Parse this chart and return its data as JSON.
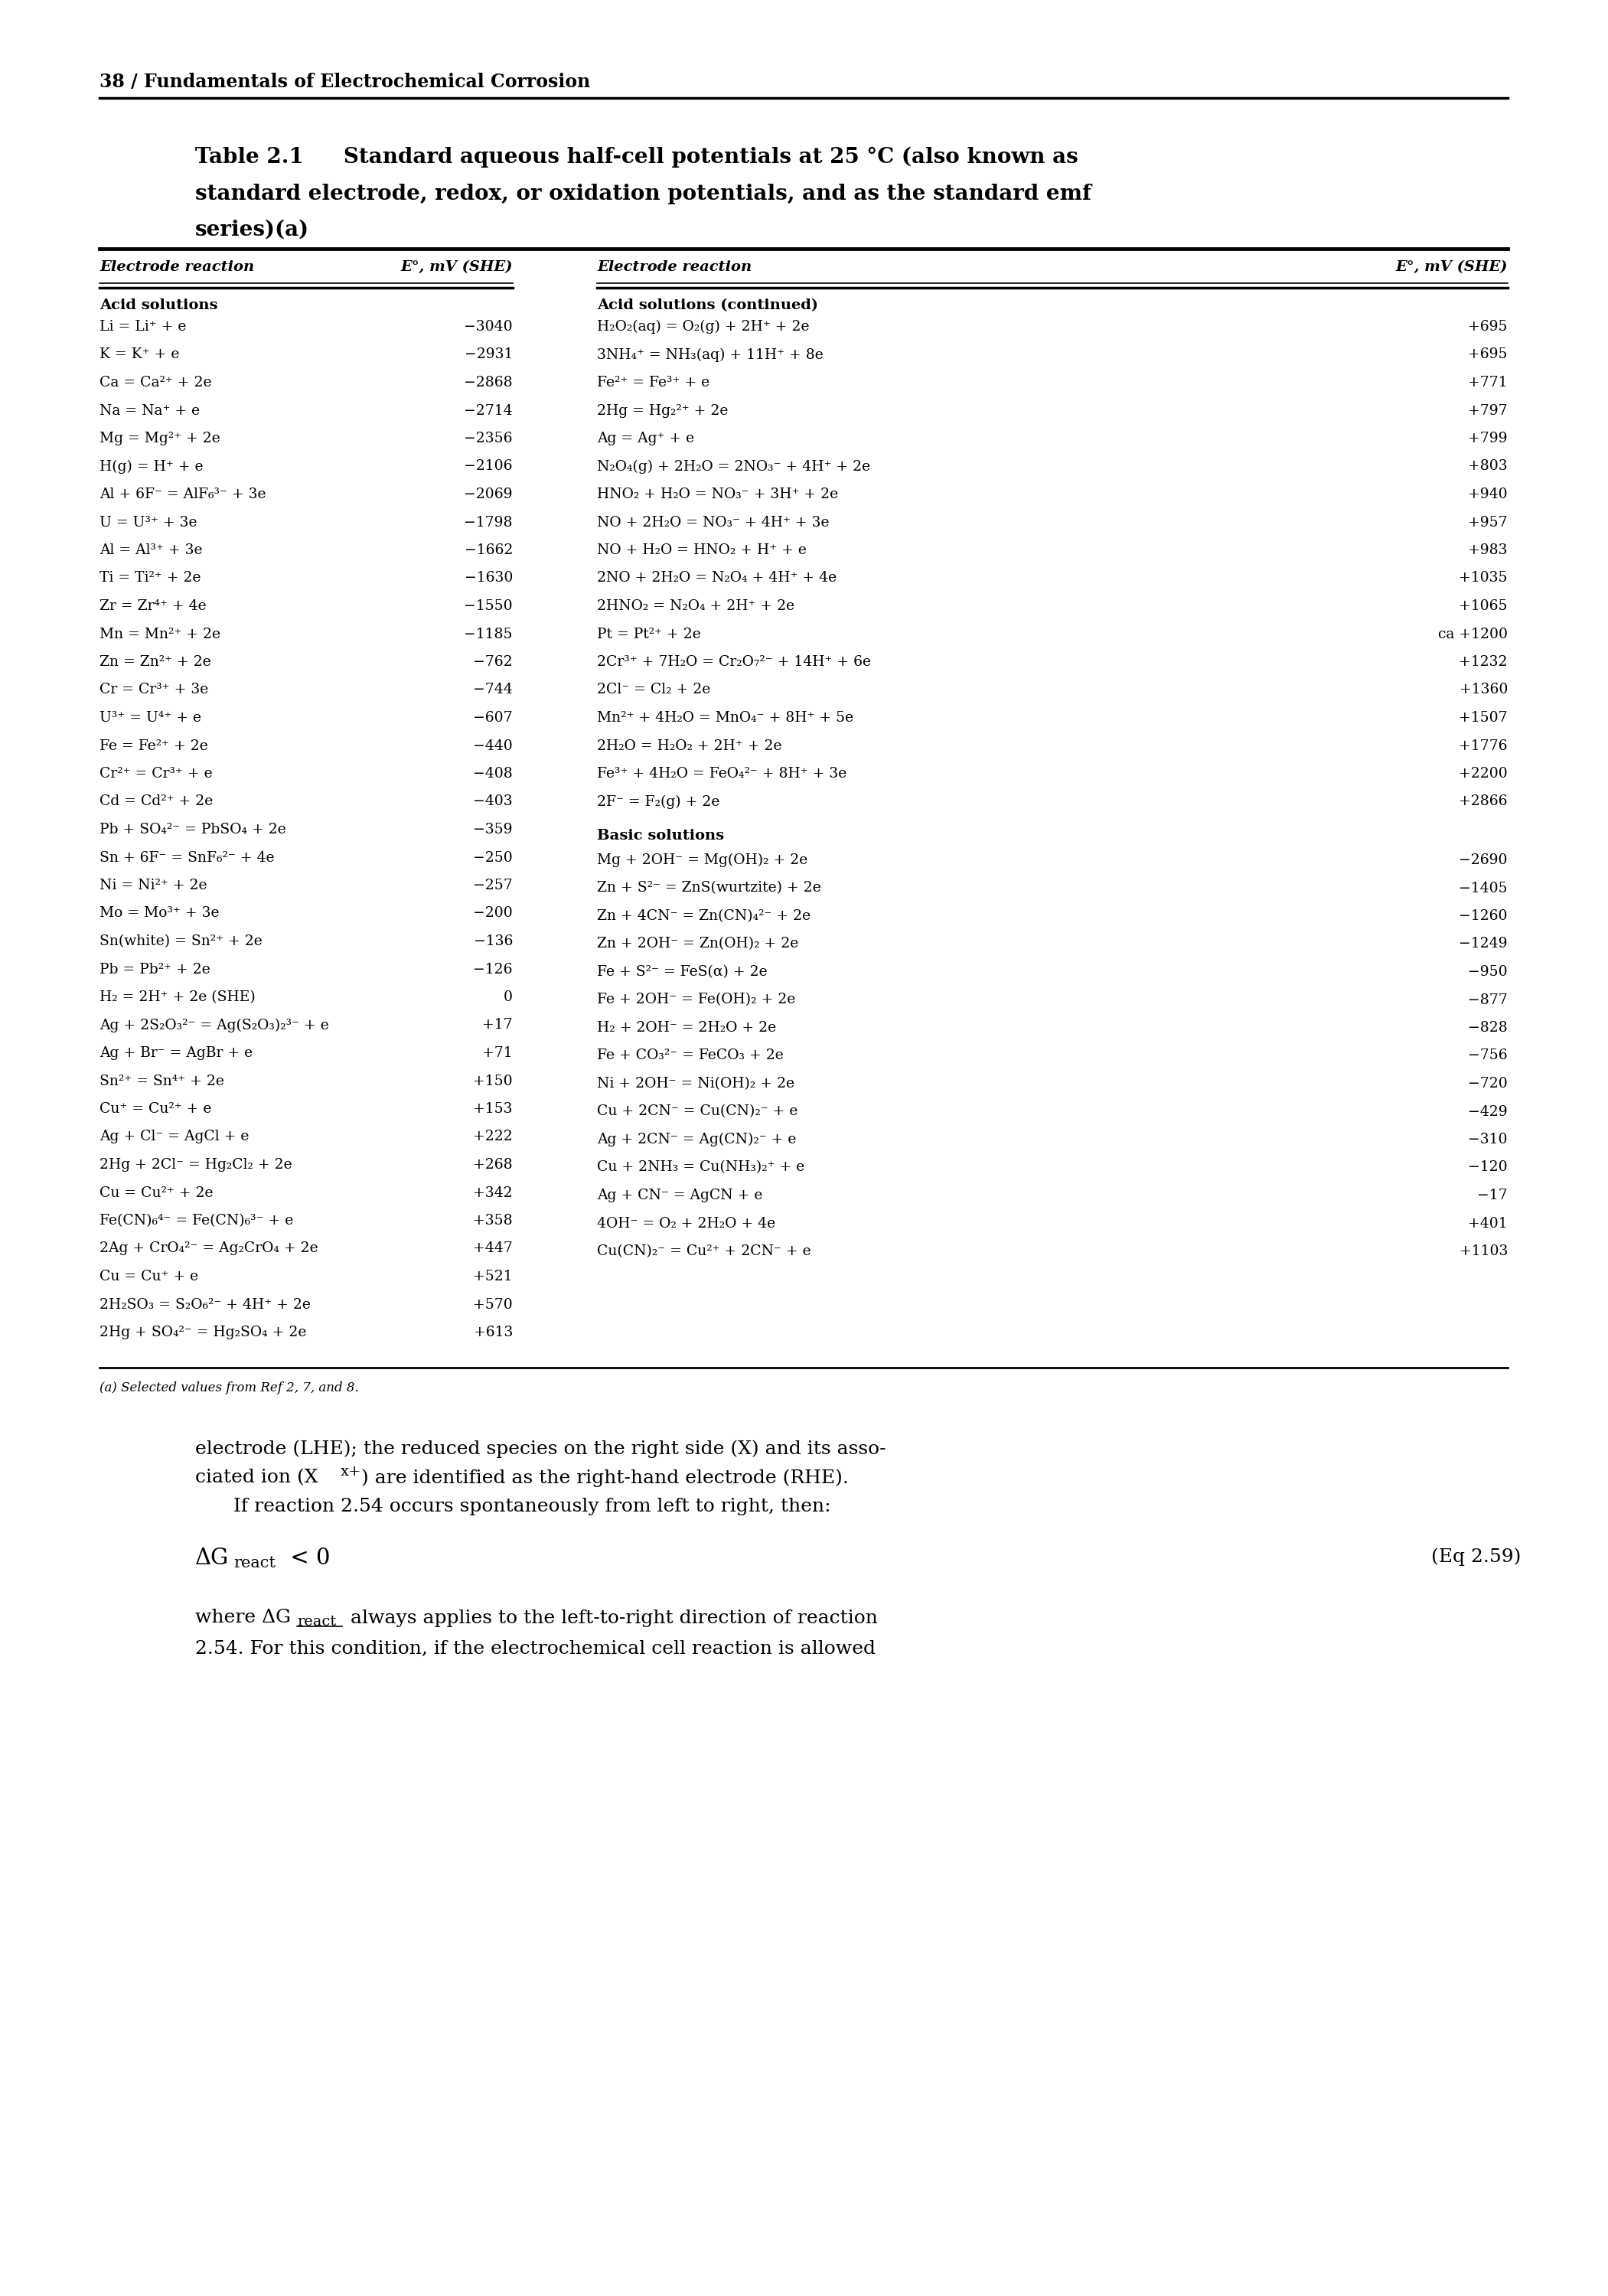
{
  "page_header": "38 / Fundamentals of Electrochemical Corrosion",
  "table_title_line1_bold": "Table 2.1",
  "table_title_line1_rest": "   Standard aqueous half-cell potentials at 25 °C (also known as",
  "table_title_line2": "standard electrode, redox, or oxidation potentials, and as the standard emf",
  "table_title_line3": "series)(a)",
  "col_header_rxn": "Electrode reaction",
  "col_header_e": "E°, mV (SHE)",
  "section_acid": "Acid solutions",
  "section_acid_cont": "Acid solutions (continued)",
  "section_basic": "Basic solutions",
  "left_rows": [
    [
      "Li = Li⁺ + e",
      "−3040"
    ],
    [
      "K = K⁺ + e",
      "−2931"
    ],
    [
      "Ca = Ca²⁺ + 2e",
      "−2868"
    ],
    [
      "Na = Na⁺ + e",
      "−2714"
    ],
    [
      "Mg = Mg²⁺ + 2e",
      "−2356"
    ],
    [
      "H(g) = H⁺ + e",
      "−2106"
    ],
    [
      "Al + 6F⁻ = AlF₆³⁻ + 3e",
      "−2069"
    ],
    [
      "U = U³⁺ + 3e",
      "−1798"
    ],
    [
      "Al = Al³⁺ + 3e",
      "−1662"
    ],
    [
      "Ti = Ti²⁺ + 2e",
      "−1630"
    ],
    [
      "Zr = Zr⁴⁺ + 4e",
      "−1550"
    ],
    [
      "Mn = Mn²⁺ + 2e",
      "−1185"
    ],
    [
      "Zn = Zn²⁺ + 2e",
      "−762"
    ],
    [
      "Cr = Cr³⁺ + 3e",
      "−744"
    ],
    [
      "U³⁺ = U⁴⁺ + e",
      "−607"
    ],
    [
      "Fe = Fe²⁺ + 2e",
      "−440"
    ],
    [
      "Cr²⁺ = Cr³⁺ + e",
      "−408"
    ],
    [
      "Cd = Cd²⁺ + 2e",
      "−403"
    ],
    [
      "Pb + SO₄²⁻ = PbSO₄ + 2e",
      "−359"
    ],
    [
      "Sn + 6F⁻ = SnF₆²⁻ + 4e",
      "−250"
    ],
    [
      "Ni = Ni²⁺ + 2e",
      "−257"
    ],
    [
      "Mo = Mo³⁺ + 3e",
      "−200"
    ],
    [
      "Sn(white) = Sn²⁺ + 2e",
      "−136"
    ],
    [
      "Pb = Pb²⁺ + 2e",
      "−126"
    ],
    [
      "H₂ = 2H⁺ + 2e (SHE)",
      "0"
    ],
    [
      "Ag + 2S₂O₃²⁻ = Ag(S₂O₃)₂³⁻ + e",
      "+17"
    ],
    [
      "Ag + Br⁻ = AgBr + e",
      "+71"
    ],
    [
      "Sn²⁺ = Sn⁴⁺ + 2e",
      "+150"
    ],
    [
      "Cu⁺ = Cu²⁺ + e",
      "+153"
    ],
    [
      "Ag + Cl⁻ = AgCl + e",
      "+222"
    ],
    [
      "2Hg + 2Cl⁻ = Hg₂Cl₂ + 2e",
      "+268"
    ],
    [
      "Cu = Cu²⁺ + 2e",
      "+342"
    ],
    [
      "Fe(CN)₆⁴⁻ = Fe(CN)₆³⁻ + e",
      "+358"
    ],
    [
      "2Ag + CrO₄²⁻ = Ag₂CrO₄ + 2e",
      "+447"
    ],
    [
      "Cu = Cu⁺ + e",
      "+521"
    ],
    [
      "2H₂SO₃ = S₂O₆²⁻ + 4H⁺ + 2e",
      "+570"
    ],
    [
      "2Hg + SO₄²⁻ = Hg₂SO₄ + 2e",
      "+613"
    ]
  ],
  "right_rows_acid": [
    [
      "H₂O₂(aq) = O₂(g) + 2H⁺ + 2e",
      "+695"
    ],
    [
      "3NH₄⁺ = NH₃(aq) + 11H⁺ + 8e",
      "+695"
    ],
    [
      "Fe²⁺ = Fe³⁺ + e",
      "+771"
    ],
    [
      "2Hg = Hg₂²⁺ + 2e",
      "+797"
    ],
    [
      "Ag = Ag⁺ + e",
      "+799"
    ],
    [
      "N₂O₄(g) + 2H₂O = 2NO₃⁻ + 4H⁺ + 2e",
      "+803"
    ],
    [
      "HNO₂ + H₂O = NO₃⁻ + 3H⁺ + 2e",
      "+940"
    ],
    [
      "NO + 2H₂O = NO₃⁻ + 4H⁺ + 3e",
      "+957"
    ],
    [
      "NO + H₂O = HNO₂ + H⁺ + e",
      "+983"
    ],
    [
      "2NO + 2H₂O = N₂O₄ + 4H⁺ + 4e",
      "+1035"
    ],
    [
      "2HNO₂ = N₂O₄ + 2H⁺ + 2e",
      "+1065"
    ],
    [
      "Pt = Pt²⁺ + 2e",
      "ca +1200"
    ],
    [
      "2Cr³⁺ + 7H₂O = Cr₂O₇²⁻ + 14H⁺ + 6e",
      "+1232"
    ],
    [
      "2Cl⁻ = Cl₂ + 2e",
      "+1360"
    ],
    [
      "Mn²⁺ + 4H₂O = MnO₄⁻ + 8H⁺ + 5e",
      "+1507"
    ],
    [
      "2H₂O = H₂O₂ + 2H⁺ + 2e",
      "+1776"
    ],
    [
      "Fe³⁺ + 4H₂O = FeO₄²⁻ + 8H⁺ + 3e",
      "+2200"
    ],
    [
      "2F⁻ = F₂(g) + 2e",
      "+2866"
    ]
  ],
  "right_rows_basic": [
    [
      "Mg + 2OH⁻ = Mg(OH)₂ + 2e",
      "−2690"
    ],
    [
      "Zn + S²⁻ = ZnS(wurtzite) + 2e",
      "−1405"
    ],
    [
      "Zn + 4CN⁻ = Zn(CN)₄²⁻ + 2e",
      "−1260"
    ],
    [
      "Zn + 2OH⁻ = Zn(OH)₂ + 2e",
      "−1249"
    ],
    [
      "Fe + S²⁻ = FeS(α) + 2e",
      "−950"
    ],
    [
      "Fe + 2OH⁻ = Fe(OH)₂ + 2e",
      "−877"
    ],
    [
      "H₂ + 2OH⁻ = 2H₂O + 2e",
      "−828"
    ],
    [
      "Fe + CO₃²⁻ = FeCO₃ + 2e",
      "−756"
    ],
    [
      "Ni + 2OH⁻ = Ni(OH)₂ + 2e",
      "−720"
    ],
    [
      "Cu + 2CN⁻ = Cu(CN)₂⁻ + e",
      "−429"
    ],
    [
      "Ag + 2CN⁻ = Ag(CN)₂⁻ + e",
      "−310"
    ],
    [
      "Cu + 2NH₃ = Cu(NH₃)₂⁺ + e",
      "−120"
    ],
    [
      "Ag + CN⁻ = AgCN + e",
      "−17"
    ],
    [
      "4OH⁻ = O₂ + 2H₂O + 4e",
      "+401"
    ],
    [
      "Cu(CN)₂⁻ = Cu²⁺ + 2CN⁻ + e",
      "+1103"
    ]
  ],
  "footnote": "(a) Selected values from Ref 2, 7, and 8.",
  "body_line1": "electrode (LHE); the reduced species on the right side (X) and its asso-",
  "body_line2a": "ciated ion (X",
  "body_line2b": "x+",
  "body_line2c": ") are identified as the right-hand electrode (RHE).",
  "body_line3": "   If reaction 2.54 occurs spontaneously from left to right, then:",
  "eq_lhs": "ΔG",
  "eq_sub": "react",
  "eq_rhs": " < 0",
  "eq_ref": "(Eq 2.59)",
  "para3a": "where ΔG",
  "para3b": "react",
  "para3c": " always applies to the left-to-right direction of reaction",
  "para3d": "2.54. For this condition, if the electrochemical cell reaction is allowed"
}
